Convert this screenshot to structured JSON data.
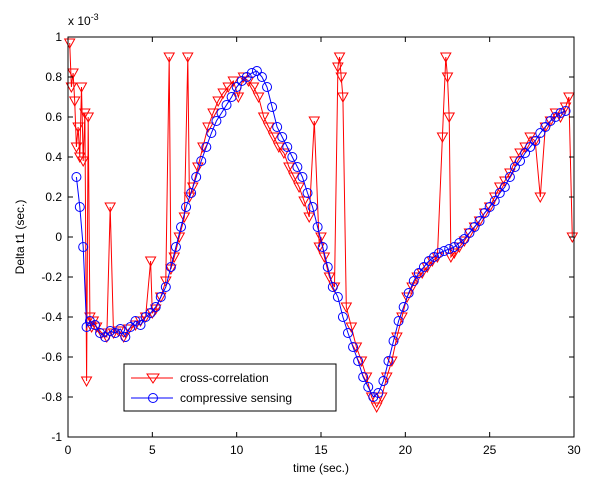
{
  "chart_data": {
    "type": "line",
    "title": "",
    "xlabel": "time (sec.)",
    "ylabel": "Delta t1 (sec.)",
    "exponent_label": "x 10",
    "exponent_power": "-3",
    "xlim": [
      0,
      30
    ],
    "ylim": [
      -1,
      1
    ],
    "y_scale_factor": 0.001,
    "xticks": [
      "0",
      "5",
      "10",
      "15",
      "20",
      "25",
      "30"
    ],
    "yticks": [
      "-1",
      "-0.8",
      "-0.6",
      "-0.4",
      "-0.2",
      "0",
      "0.2",
      "0.4",
      "0.6",
      "0.8",
      "1"
    ],
    "grid": false,
    "legend_position": "bottom-left",
    "series": [
      {
        "name": "cross-correlation",
        "color": "#ff0000",
        "marker": "triangle-down",
        "x": [
          0.1,
          0.2,
          0.3,
          0.4,
          0.5,
          0.6,
          0.7,
          0.8,
          0.9,
          1.0,
          1.1,
          1.2,
          1.3,
          1.4,
          1.5,
          1.7,
          2.0,
          2.3,
          2.5,
          2.7,
          3.0,
          3.3,
          3.6,
          4.0,
          4.3,
          4.6,
          4.9,
          5.0,
          5.2,
          5.5,
          5.8,
          6.0,
          6.1,
          6.3,
          6.6,
          6.9,
          7.1,
          7.2,
          7.4,
          7.7,
          8.0,
          8.3,
          8.6,
          8.9,
          9.2,
          9.5,
          9.8,
          10.1,
          10.4,
          10.7,
          11.0,
          11.3,
          11.6,
          11.9,
          12.2,
          12.5,
          12.8,
          13.1,
          13.4,
          13.7,
          14.0,
          14.3,
          14.6,
          14.9,
          15.0,
          15.2,
          15.5,
          15.8,
          16.0,
          16.1,
          16.2,
          16.3,
          16.5,
          16.8,
          17.1,
          17.4,
          17.7,
          18.0,
          18.3,
          18.6,
          18.9,
          19.2,
          19.5,
          19.8,
          20.1,
          20.4,
          20.7,
          21.0,
          21.3,
          21.6,
          21.9,
          22.2,
          22.4,
          22.5,
          22.6,
          22.7,
          22.9,
          23.2,
          23.5,
          23.8,
          24.1,
          24.4,
          24.7,
          25.0,
          25.3,
          25.6,
          25.9,
          26.2,
          26.5,
          26.8,
          27.1,
          27.4,
          27.7,
          28.0,
          28.3,
          28.6,
          28.9,
          29.2,
          29.5,
          29.7,
          29.9
        ],
        "y": [
          0.97,
          0.75,
          0.82,
          0.68,
          0.45,
          0.55,
          0.4,
          0.75,
          0.38,
          0.62,
          -0.72,
          0.6,
          -0.4,
          -0.45,
          -0.42,
          -0.45,
          -0.48,
          -0.5,
          0.15,
          -0.48,
          -0.47,
          -0.5,
          -0.46,
          -0.44,
          -0.42,
          -0.4,
          -0.12,
          -0.38,
          -0.36,
          -0.3,
          -0.22,
          0.9,
          -0.16,
          -0.1,
          0.0,
          0.1,
          0.9,
          0.2,
          0.25,
          0.35,
          0.45,
          0.55,
          0.62,
          0.68,
          0.72,
          0.75,
          0.78,
          0.7,
          0.8,
          0.78,
          0.75,
          0.7,
          0.6,
          0.55,
          0.5,
          0.45,
          0.42,
          0.35,
          0.3,
          0.25,
          0.18,
          0.1,
          0.58,
          -0.05,
          0.0,
          -0.1,
          -0.2,
          -0.25,
          0.85,
          0.9,
          0.8,
          0.7,
          -0.35,
          -0.45,
          -0.55,
          -0.62,
          -0.7,
          -0.8,
          -0.85,
          -0.8,
          -0.7,
          -0.62,
          -0.5,
          -0.4,
          -0.3,
          -0.25,
          -0.2,
          -0.18,
          -0.15,
          -0.12,
          -0.1,
          0.5,
          0.9,
          0.8,
          0.6,
          -0.1,
          -0.08,
          -0.05,
          -0.02,
          0.02,
          0.05,
          0.08,
          0.12,
          0.15,
          0.2,
          0.25,
          0.28,
          0.32,
          0.38,
          0.42,
          0.45,
          0.5,
          0.48,
          0.2,
          0.55,
          0.58,
          0.62,
          0.6,
          0.65,
          0.7,
          0.0
        ]
      },
      {
        "name": "compressive sensing",
        "color": "#0000ff",
        "marker": "circle",
        "x": [
          0.5,
          0.7,
          0.9,
          1.1,
          1.3,
          1.6,
          1.9,
          2.2,
          2.5,
          2.8,
          3.1,
          3.4,
          3.7,
          4.0,
          4.3,
          4.6,
          4.9,
          5.2,
          5.5,
          5.8,
          6.1,
          6.4,
          6.7,
          7.0,
          7.3,
          7.6,
          7.9,
          8.2,
          8.5,
          8.8,
          9.1,
          9.4,
          9.7,
          10.0,
          10.3,
          10.6,
          10.9,
          11.2,
          11.5,
          11.8,
          12.1,
          12.4,
          12.7,
          13.0,
          13.3,
          13.6,
          13.9,
          14.2,
          14.5,
          14.8,
          15.1,
          15.4,
          15.7,
          16.0,
          16.3,
          16.6,
          16.9,
          17.2,
          17.5,
          17.8,
          18.1,
          18.4,
          18.7,
          19.0,
          19.3,
          19.6,
          19.9,
          20.2,
          20.5,
          20.8,
          21.1,
          21.4,
          21.7,
          22.0,
          22.3,
          22.6,
          22.9,
          23.2,
          23.5,
          23.8,
          24.1,
          24.4,
          24.7,
          25.0,
          25.3,
          25.6,
          25.9,
          26.2,
          26.5,
          26.8,
          27.1,
          27.4,
          27.7,
          28.0,
          28.3,
          28.6,
          28.9,
          29.2,
          29.5
        ],
        "y": [
          0.3,
          0.15,
          -0.05,
          -0.45,
          -0.42,
          -0.44,
          -0.48,
          -0.5,
          -0.47,
          -0.48,
          -0.46,
          -0.5,
          -0.45,
          -0.42,
          -0.44,
          -0.4,
          -0.38,
          -0.35,
          -0.3,
          -0.25,
          -0.15,
          -0.05,
          0.05,
          0.15,
          0.22,
          0.3,
          0.38,
          0.45,
          0.52,
          0.58,
          0.62,
          0.66,
          0.7,
          0.75,
          0.78,
          0.8,
          0.82,
          0.83,
          0.8,
          0.75,
          0.65,
          0.55,
          0.5,
          0.45,
          0.4,
          0.35,
          0.3,
          0.22,
          0.15,
          0.05,
          -0.05,
          -0.15,
          -0.25,
          -0.3,
          -0.4,
          -0.48,
          -0.55,
          -0.62,
          -0.7,
          -0.75,
          -0.8,
          -0.78,
          -0.72,
          -0.62,
          -0.52,
          -0.42,
          -0.35,
          -0.28,
          -0.22,
          -0.18,
          -0.15,
          -0.12,
          -0.1,
          -0.08,
          -0.07,
          -0.06,
          -0.05,
          -0.03,
          -0.01,
          0.02,
          0.05,
          0.08,
          0.12,
          0.15,
          0.18,
          0.22,
          0.25,
          0.3,
          0.35,
          0.38,
          0.42,
          0.45,
          0.48,
          0.52,
          0.55,
          0.58,
          0.6,
          0.62,
          0.63
        ]
      }
    ]
  }
}
